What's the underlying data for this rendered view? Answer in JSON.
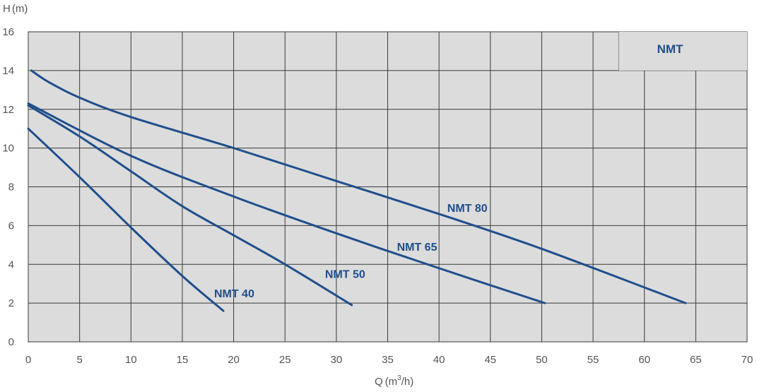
{
  "chart_data": {
    "type": "line",
    "title": "NMT",
    "ylabel_text": "H",
    "ylabel_unit": "(m)",
    "xlabel_text": "Q",
    "xlabel_unit_pre": "(m",
    "xlabel_unit_sup": "3",
    "xlabel_unit_post": "/h)",
    "xlim": [
      0,
      70
    ],
    "ylim": [
      0,
      16
    ],
    "xticks": [
      "0",
      "5",
      "10",
      "15",
      "20",
      "25",
      "30",
      "35",
      "40",
      "45",
      "50",
      "55",
      "60",
      "65",
      "70"
    ],
    "yticks": [
      "0",
      "2",
      "4",
      "6",
      "8",
      "10",
      "12",
      "14",
      "16"
    ],
    "grid": true,
    "colors": {
      "plot_bg": "#dcdcdc",
      "grid": "#3a3a3a",
      "line": "#1f4e8c",
      "label": "#1f4e8c"
    },
    "series": [
      {
        "name": "NMT 40",
        "points": [
          [
            0,
            11.0
          ],
          [
            5,
            8.5
          ],
          [
            10,
            5.9
          ],
          [
            15,
            3.4
          ],
          [
            19,
            1.6
          ]
        ]
      },
      {
        "name": "NMT 50",
        "points": [
          [
            0,
            12.2
          ],
          [
            5,
            10.6
          ],
          [
            10,
            8.8
          ],
          [
            15,
            7.0
          ],
          [
            20,
            5.5
          ],
          [
            25,
            4.0
          ],
          [
            31.5,
            1.9
          ]
        ]
      },
      {
        "name": "NMT 65",
        "points": [
          [
            0,
            12.3
          ],
          [
            10,
            9.6
          ],
          [
            20,
            7.5
          ],
          [
            30,
            5.6
          ],
          [
            40,
            3.8
          ],
          [
            50.3,
            2.0
          ]
        ]
      },
      {
        "name": "NMT 80",
        "points": [
          [
            0.3,
            14.0
          ],
          [
            2,
            13.4
          ],
          [
            5,
            12.6
          ],
          [
            10,
            11.6
          ],
          [
            20,
            10.0
          ],
          [
            30,
            8.3
          ],
          [
            40,
            6.6
          ],
          [
            50,
            4.8
          ],
          [
            64,
            2.0
          ]
        ]
      }
    ]
  }
}
